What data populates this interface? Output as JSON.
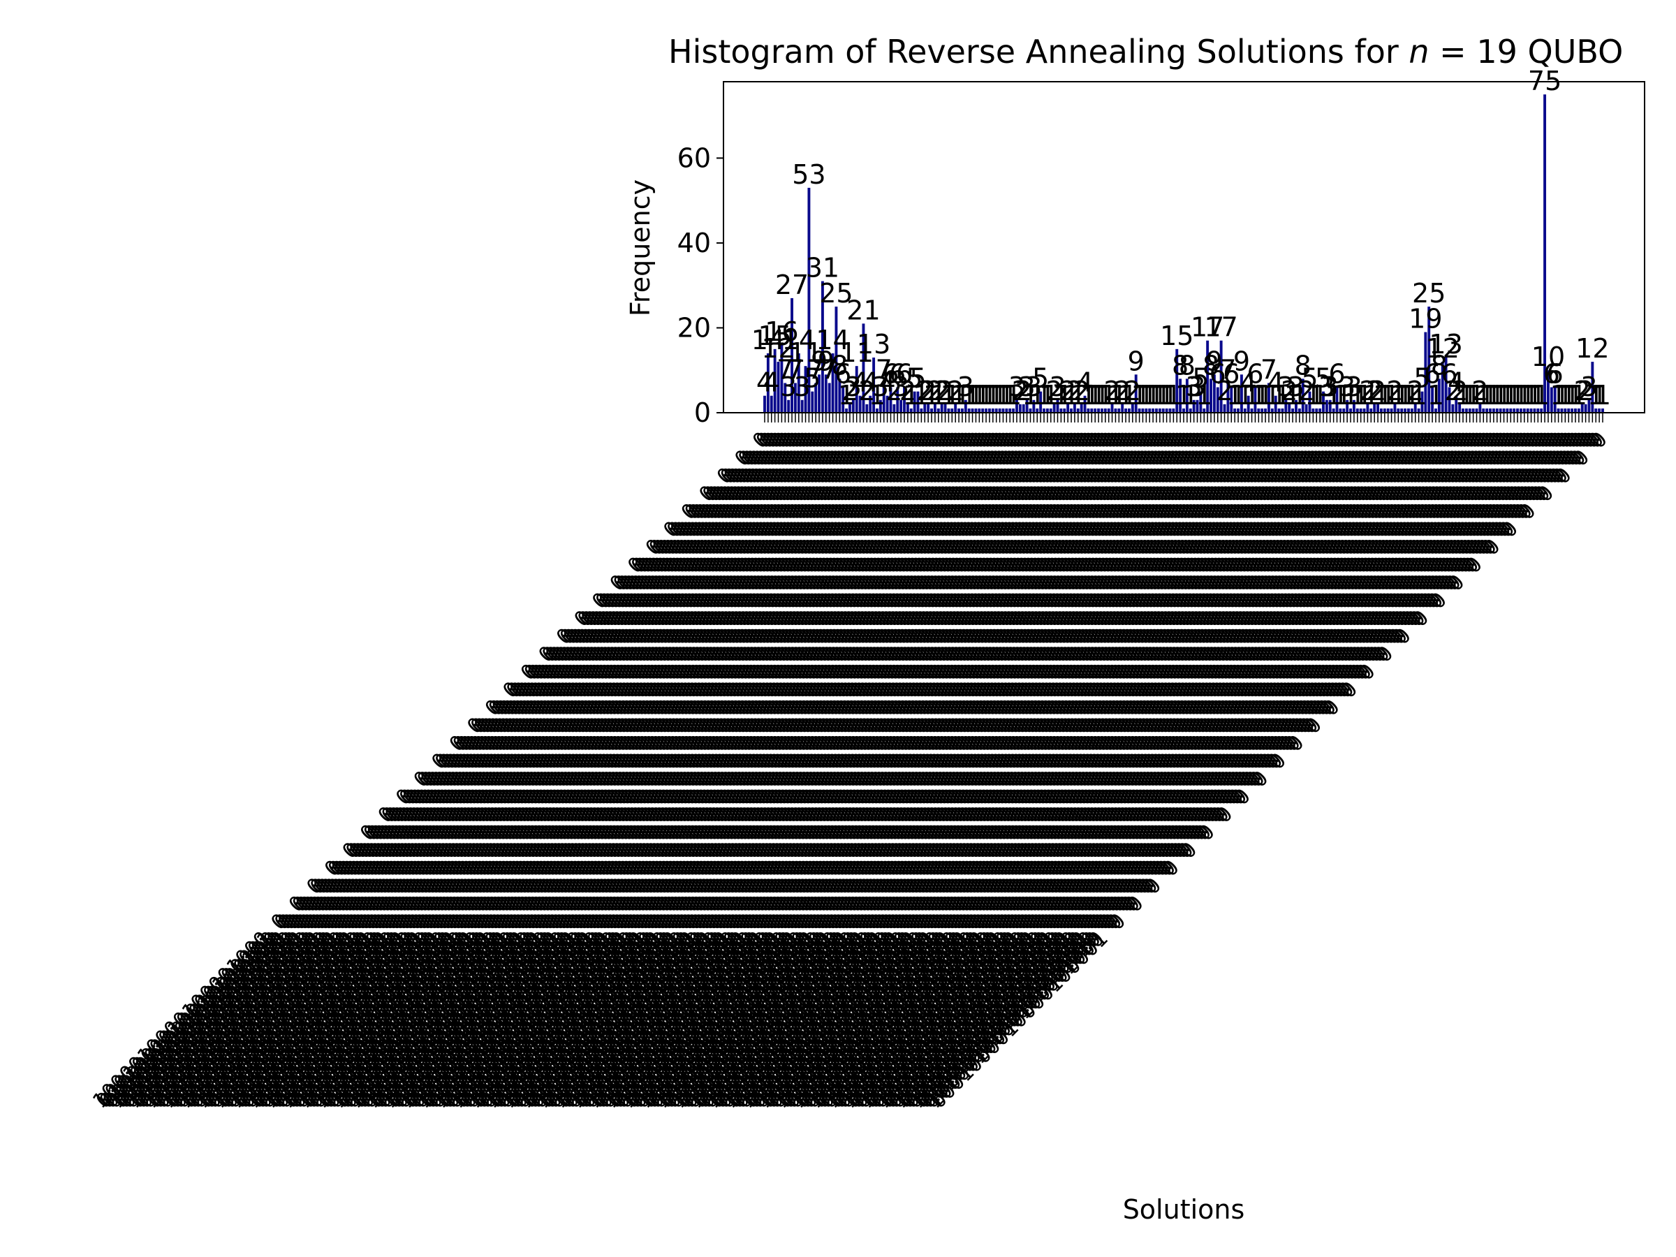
{
  "chart_data": {
    "type": "bar",
    "title": "Histogram of Reverse Annealing Solutions for n = 19 QUBO",
    "title_prefix": "Histogram of Reverse Annealing Solutions for ",
    "title_var": "n",
    "title_rest": " = 19 QUBO",
    "xlabel": "Solutions",
    "ylabel": "Frequency",
    "ylim": [
      0,
      78
    ],
    "yticks": [
      0,
      20,
      40,
      60
    ],
    "grid": false,
    "bar_color": "#0a0a8c",
    "x_tick_labels_note": "x tick labels are 19-bit solution strings rotated 45 degrees; overlapping and illegible in the image",
    "values": [
      4,
      14,
      4,
      15,
      12,
      16,
      7,
      3,
      27,
      7,
      14,
      3,
      11,
      53,
      5,
      7,
      9,
      31,
      9,
      7,
      14,
      25,
      8,
      6,
      1,
      2,
      3,
      11,
      4,
      21,
      2,
      4,
      13,
      1,
      3,
      7,
      4,
      6,
      2,
      6,
      3,
      6,
      2,
      1,
      5,
      5,
      1,
      2,
      2,
      1,
      2,
      1,
      2,
      2,
      1,
      1,
      2,
      1,
      1,
      3,
      1,
      1,
      1,
      1,
      1,
      1,
      1,
      1,
      1,
      1,
      1,
      1,
      1,
      1,
      3,
      2,
      2,
      3,
      1,
      3,
      1,
      5,
      1,
      1,
      1,
      2,
      3,
      1,
      1,
      2,
      1,
      2,
      1,
      2,
      4,
      1,
      1,
      1,
      1,
      1,
      1,
      1,
      2,
      1,
      1,
      2,
      1,
      1,
      2,
      9,
      1,
      1,
      1,
      1,
      1,
      1,
      1,
      1,
      1,
      1,
      1,
      15,
      8,
      1,
      8,
      1,
      3,
      3,
      5,
      1,
      17,
      8,
      9,
      6,
      17,
      2,
      7,
      6,
      1,
      1,
      9,
      1,
      4,
      1,
      6,
      1,
      1,
      1,
      7,
      1,
      4,
      1,
      1,
      3,
      2,
      1,
      3,
      1,
      8,
      2,
      5,
      1,
      1,
      1,
      5,
      3,
      3,
      1,
      6,
      1,
      1,
      3,
      1,
      3,
      1,
      1,
      1,
      2,
      1,
      2,
      2,
      1,
      1,
      1,
      1,
      2,
      1,
      1,
      1,
      1,
      1,
      2,
      1,
      5,
      19,
      25,
      6,
      1,
      8,
      12,
      13,
      6,
      2,
      4,
      2,
      1,
      1,
      1,
      1,
      1,
      2,
      1,
      1,
      1,
      1,
      1,
      1,
      1,
      1,
      1,
      1,
      1,
      1,
      1,
      1,
      1,
      1,
      1,
      1,
      75,
      10,
      6,
      6,
      1,
      1,
      1,
      1,
      1,
      1,
      1,
      2,
      2,
      3,
      12,
      1,
      1,
      1
    ],
    "value_labels": [
      4,
      14,
      4,
      15,
      12,
      16,
      7,
      3,
      27,
      7,
      14,
      3,
      11,
      53,
      5,
      7,
      9,
      31,
      9,
      7,
      14,
      25,
      8,
      6,
      1,
      2,
      3,
      11,
      4,
      21,
      2,
      4,
      13,
      1,
      3,
      7,
      4,
      6,
      2,
      6,
      3,
      6,
      2,
      1,
      5,
      5,
      1,
      2,
      2,
      1,
      2,
      1,
      2,
      2,
      1,
      1,
      2,
      1,
      1,
      3,
      1,
      1,
      1,
      1,
      1,
      1,
      1,
      1,
      1,
      1,
      1,
      1,
      1,
      1,
      3,
      2,
      2,
      3,
      1,
      3,
      1,
      5,
      1,
      1,
      1,
      2,
      3,
      1,
      1,
      2,
      1,
      2,
      1,
      2,
      4,
      1,
      1,
      1,
      1,
      1,
      1,
      1,
      2,
      1,
      1,
      2,
      1,
      1,
      2,
      9,
      1,
      1,
      1,
      1,
      1,
      1,
      1,
      1,
      1,
      1,
      1,
      15,
      8,
      1,
      8,
      1,
      3,
      3,
      5,
      1,
      17,
      8,
      9,
      6,
      17,
      2,
      7,
      6,
      1,
      1,
      9,
      1,
      4,
      1,
      6,
      1,
      1,
      1,
      7,
      1,
      4,
      1,
      1,
      3,
      2,
      1,
      3,
      1,
      8,
      2,
      5,
      1,
      1,
      1,
      5,
      3,
      3,
      1,
      6,
      1,
      1,
      3,
      1,
      3,
      1,
      1,
      1,
      2,
      1,
      2,
      2,
      1,
      1,
      1,
      1,
      2,
      1,
      1,
      1,
      1,
      1,
      2,
      1,
      5,
      19,
      25,
      6,
      1,
      8,
      12,
      13,
      6,
      2,
      4,
      2,
      1,
      1,
      1,
      1,
      1,
      2,
      1,
      1,
      1,
      1,
      1,
      1,
      1,
      1,
      1,
      1,
      1,
      1,
      1,
      1,
      1,
      1,
      1,
      1,
      75,
      10,
      6,
      6,
      1,
      1,
      1,
      1,
      1,
      1,
      1,
      2,
      2,
      3,
      12,
      1,
      1,
      1
    ]
  }
}
